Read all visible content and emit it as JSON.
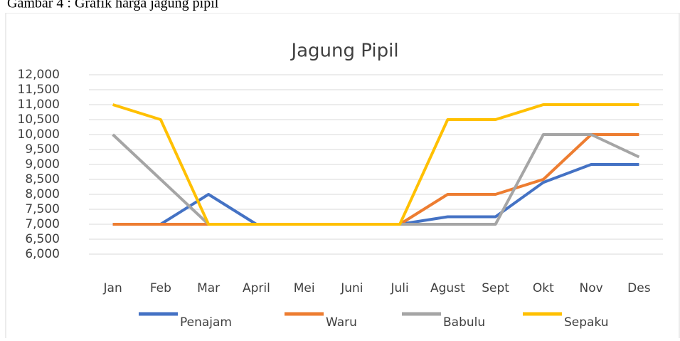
{
  "caption": "Gambar 4 : Grafik harga jagung pipil",
  "chart_data": {
    "type": "line",
    "title": "Jagung Pipil",
    "categories": [
      "Jan",
      "Feb",
      "Mar",
      "April",
      "Mei",
      "Juni",
      "Juli",
      "Agust",
      "Sept",
      "Okt",
      "Nov",
      "Des"
    ],
    "series": [
      {
        "name": "Penajam",
        "color": "#4472c4",
        "values": [
          7000,
          7000,
          8000,
          7000,
          7000,
          7000,
          7000,
          7250,
          7250,
          8400,
          9000,
          9000
        ]
      },
      {
        "name": "Waru",
        "color": "#ed7d31",
        "values": [
          7000,
          7000,
          7000,
          7000,
          7000,
          7000,
          7000,
          8000,
          8000,
          8500,
          10000,
          10000
        ]
      },
      {
        "name": "Babulu",
        "color": "#a5a5a5",
        "values": [
          10000,
          8500,
          7000,
          7000,
          7000,
          7000,
          7000,
          7000,
          7000,
          10000,
          10000,
          9250
        ]
      },
      {
        "name": "Sepaku",
        "color": "#ffc000",
        "values": [
          11000,
          10500,
          7000,
          7000,
          7000,
          7000,
          7000,
          10500,
          10500,
          11000,
          11000,
          11000
        ]
      }
    ],
    "ylim": [
      6000,
      12000
    ],
    "yticks": [
      {
        "value": 6000,
        "label": "6,000"
      },
      {
        "value": 6500,
        "label": "6,500"
      },
      {
        "value": 7000,
        "label": "7,000"
      },
      {
        "value": 7500,
        "label": "7,500"
      },
      {
        "value": 8000,
        "label": "8,000"
      },
      {
        "value": 8500,
        "label": "8,500"
      },
      {
        "value": 9000,
        "label": "9,000"
      },
      {
        "value": 9500,
        "label": "9,500"
      },
      {
        "value": 10000,
        "label": "10,000"
      },
      {
        "value": 10500,
        "label": "10,500"
      },
      {
        "value": 11000,
        "label": "11,000"
      },
      {
        "value": 11500,
        "label": "11,500"
      },
      {
        "value": 12000,
        "label": "12,000"
      }
    ],
    "grid": true,
    "legend": "bottom"
  }
}
